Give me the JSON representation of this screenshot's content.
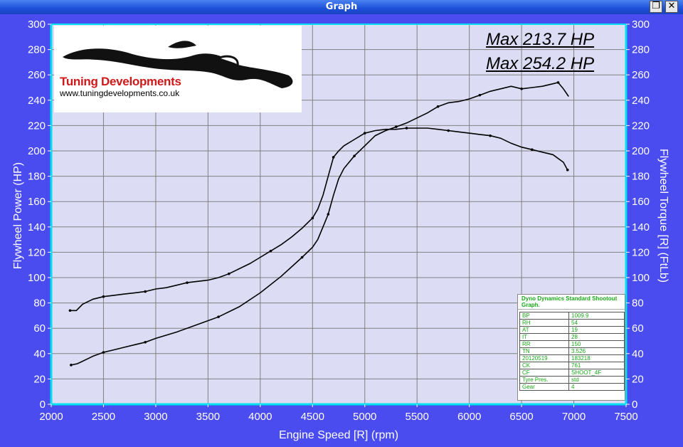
{
  "window": {
    "title": "Graph"
  },
  "logo": {
    "brand": "Tuning Developments",
    "url": "www.tuningdevelopments.co.uk"
  },
  "max_labels": [
    "Max 213.7 HP",
    "Max 254.2 HP"
  ],
  "info_box": {
    "title": "Dyno Dynamics Standard Shootout Graph.",
    "rows": [
      [
        "BP",
        "1009.9"
      ],
      [
        "RH",
        "54"
      ],
      [
        "AT",
        "19"
      ],
      [
        "IT",
        "28"
      ],
      [
        "RR",
        "150"
      ],
      [
        "TN",
        "3.526"
      ],
      [
        "20120519",
        "183218"
      ],
      [
        "CK",
        "761"
      ],
      [
        "CF",
        "SHOOT_4F"
      ],
      [
        "Tyre Pres.",
        "std"
      ],
      [
        "Gear",
        "4"
      ]
    ]
  },
  "colors": {
    "background": "#4a4cf0",
    "plot_area": "#dcdcf4",
    "axis": "#00e0f0",
    "grid": "#808080",
    "curve": "#000000"
  },
  "chart_data": {
    "type": "line",
    "xlabel": "Engine Speed [R] (rpm)",
    "ylabel_left": "Flywheel Power (HP)",
    "ylabel_right": "Flywheel Torque [R] (FtLb)",
    "xlim": [
      2000,
      7500
    ],
    "ylim": [
      0,
      300
    ],
    "x_ticks": [
      "2000",
      "2500",
      "3000",
      "3500",
      "4000",
      "4500",
      "5000",
      "5500",
      "6000",
      "6500",
      "7000",
      "7500"
    ],
    "y_ticks": [
      "0",
      "20",
      "40",
      "60",
      "80",
      "100",
      "120",
      "140",
      "160",
      "180",
      "200",
      "220",
      "240",
      "260",
      "280",
      "300"
    ],
    "grid": true,
    "series": [
      {
        "x": [
          2180,
          2240,
          2300,
          2400,
          2500,
          2600,
          2700,
          2800,
          2900,
          3000,
          3100,
          3200,
          3300,
          3400,
          3500,
          3600,
          3700,
          3800,
          3900,
          4000,
          4100,
          4200,
          4300,
          4400,
          4500,
          4550,
          4600,
          4650,
          4700,
          4750,
          4800,
          4900,
          5000,
          5100,
          5200,
          5300,
          5400,
          5500,
          5600,
          5700,
          5800,
          5900,
          6000,
          6100,
          6200,
          6300,
          6400,
          6500,
          6600,
          6700,
          6800,
          6900,
          6940
        ],
        "y": [
          74,
          74,
          79,
          83,
          85,
          86,
          87,
          88,
          89,
          91,
          92,
          94,
          96,
          97,
          98,
          100,
          103,
          107,
          111,
          116,
          121,
          126,
          132,
          139,
          147,
          154,
          165,
          180,
          195,
          200,
          204,
          209,
          214,
          216,
          217,
          217,
          218,
          218,
          218,
          217,
          216,
          215,
          214,
          213,
          212,
          210,
          206,
          203,
          201,
          199,
          197,
          191,
          185
        ]
      },
      {
        "x": [
          2190,
          2250,
          2300,
          2400,
          2500,
          2600,
          2700,
          2800,
          2900,
          3000,
          3200,
          3400,
          3600,
          3800,
          4000,
          4200,
          4400,
          4500,
          4550,
          4600,
          4650,
          4700,
          4750,
          4800,
          4900,
          5000,
          5100,
          5200,
          5300,
          5400,
          5500,
          5600,
          5700,
          5800,
          5900,
          6000,
          6100,
          6200,
          6300,
          6400,
          6500,
          6600,
          6700,
          6800,
          6850,
          6900,
          6950
        ],
        "y": [
          31,
          32,
          34,
          38,
          41,
          43,
          45,
          47,
          49,
          52,
          57,
          63,
          69,
          77,
          88,
          101,
          116,
          124,
          130,
          140,
          150,
          165,
          178,
          186,
          196,
          204,
          212,
          216,
          219,
          222,
          226,
          230,
          235,
          238,
          239,
          241,
          244,
          247,
          249,
          251,
          249,
          250,
          251,
          253,
          254,
          249,
          243
        ]
      }
    ]
  }
}
